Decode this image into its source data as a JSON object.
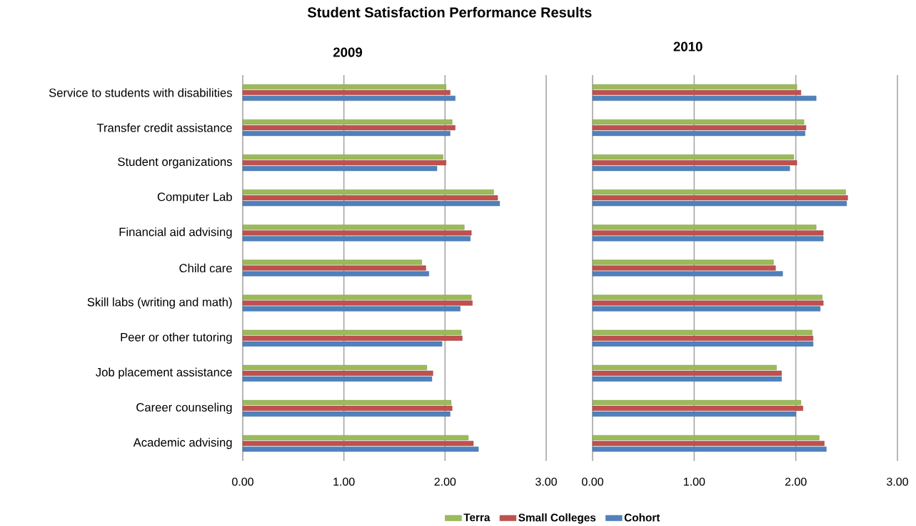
{
  "chart_data": [
    {
      "type": "bar",
      "orientation": "horizontal",
      "title": "Student Satisfaction Performance Results",
      "subtitle": "2009",
      "categories": [
        "Service to students with disabilities",
        "Transfer credit assistance",
        "Student organizations",
        "Computer Lab",
        "Financial aid advising",
        "Child care",
        "Skill labs (writing and math)",
        "Peer or other tutoring",
        "Job placement assistance",
        "Career counseling",
        "Academic advising"
      ],
      "series": [
        {
          "name": "Terra",
          "color": "#9bbb59",
          "values": [
            2.01,
            2.07,
            1.98,
            2.48,
            2.19,
            1.77,
            2.26,
            2.16,
            1.82,
            2.06,
            2.23
          ]
        },
        {
          "name": "Small Colleges",
          "color": "#c0504d",
          "values": [
            2.05,
            2.1,
            2.01,
            2.52,
            2.26,
            1.81,
            2.27,
            2.17,
            1.88,
            2.07,
            2.28
          ]
        },
        {
          "name": "Cohort",
          "color": "#4f81bd",
          "values": [
            2.1,
            2.05,
            1.92,
            2.54,
            2.25,
            1.84,
            2.15,
            1.97,
            1.87,
            2.05,
            2.33
          ]
        }
      ],
      "xlim": [
        0,
        3
      ],
      "xticks": [
        {
          "value": 0,
          "label": "0.00"
        },
        {
          "value": 1,
          "label": "1.00"
        },
        {
          "value": 2,
          "label": "2.00"
        },
        {
          "value": 3,
          "label": "3.00"
        }
      ],
      "grid": "x",
      "legend": "bottom"
    },
    {
      "type": "bar",
      "orientation": "horizontal",
      "title": "2010",
      "categories": [
        null,
        null,
        null,
        null,
        null,
        null,
        null,
        null,
        null,
        null,
        null
      ],
      "series": [
        {
          "color": "#9bbb59",
          "values": [
            2.01,
            2.08,
            1.98,
            2.49,
            2.2,
            1.78,
            2.26,
            2.16,
            1.81,
            2.05,
            2.23
          ]
        },
        {
          "color": "#c0504d",
          "values": [
            2.05,
            2.1,
            2.01,
            2.51,
            2.27,
            1.8,
            2.27,
            2.17,
            1.86,
            2.07,
            2.28
          ]
        },
        {
          "color": "#4f81bd",
          "values": [
            2.2,
            2.09,
            1.94,
            2.5,
            2.27,
            1.87,
            2.24,
            2.17,
            1.86,
            2.0,
            2.3
          ]
        }
      ],
      "xlim": [
        0,
        3
      ],
      "xticks": [
        {
          "value": 0,
          "label": "0.00"
        },
        {
          "value": 1,
          "label": "1.00"
        },
        {
          "value": 2,
          "label": "2.00"
        },
        {
          "value": 3,
          "label": "3.00"
        }
      ],
      "grid": "x",
      "tick_labels": "x"
    }
  ]
}
